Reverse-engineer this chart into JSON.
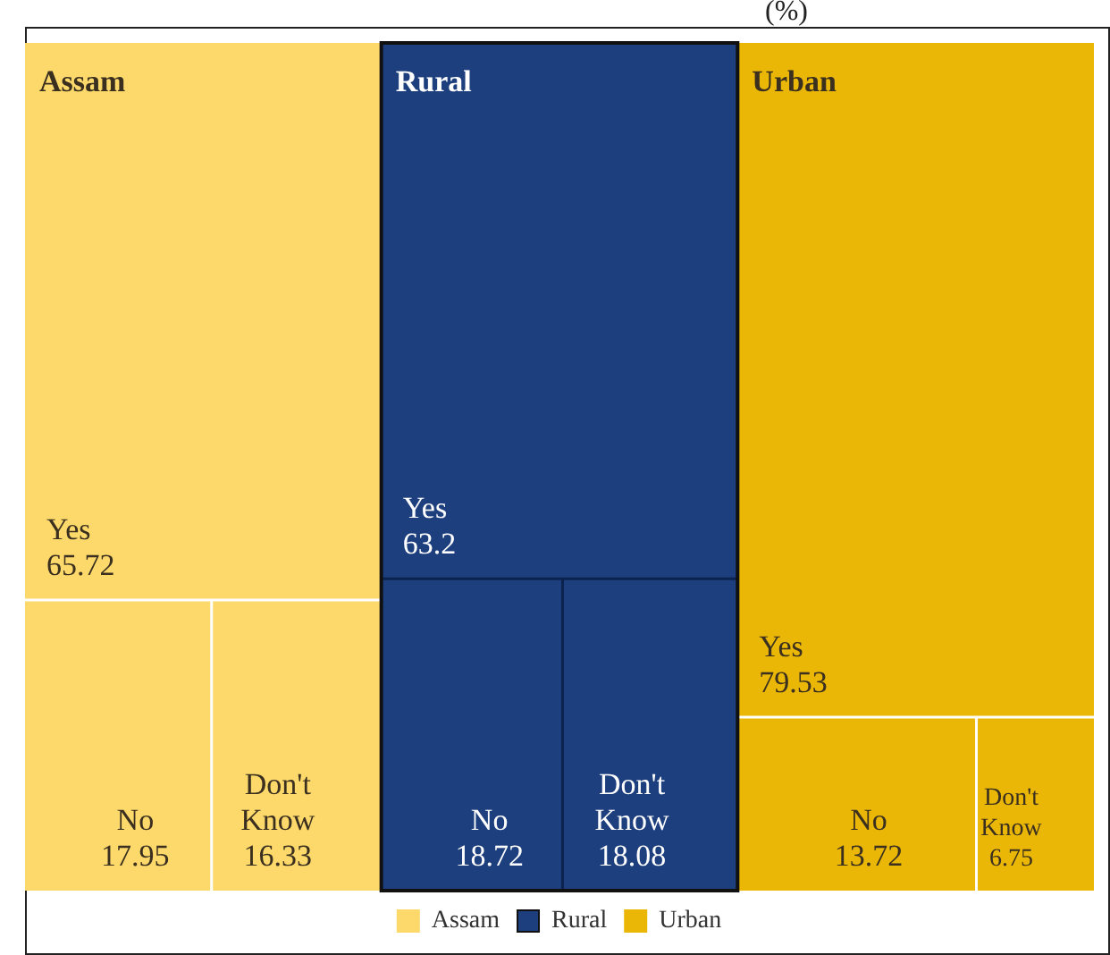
{
  "chart_data": {
    "type": "other",
    "title": "(%)",
    "categories": [
      "Assam",
      "Rural",
      "Urban"
    ],
    "colors": [
      "#fcd96a",
      "#1d3f7e",
      "#ebb706"
    ],
    "series": [
      {
        "name": "Yes",
        "colors": [
          "#fcd96a",
          "#1d3f7e",
          "#ebb706"
        ],
        "values": [
          65.72,
          63.2,
          79.53
        ]
      },
      {
        "name": "No",
        "colors": [
          "#fcd96a",
          "#1d3f7e",
          "#ebb706"
        ],
        "values": [
          17.95,
          18.72,
          13.72
        ]
      },
      {
        "name": "Don't Know",
        "colors": [
          "#fcd96a",
          "#1d3f7e",
          "#ebb706"
        ],
        "values": [
          16.33,
          18.08,
          6.75
        ]
      }
    ],
    "legend": "bottom",
    "data_labels": true
  }
}
